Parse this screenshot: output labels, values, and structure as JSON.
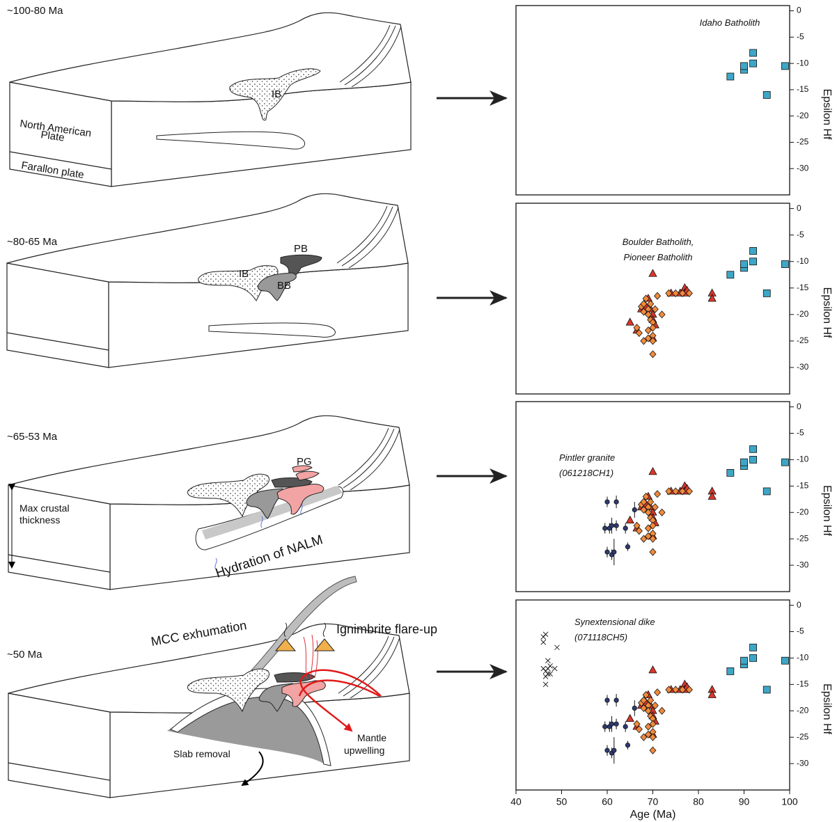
{
  "diagrams": [
    {
      "age": "~100-80 Ma",
      "labels": [
        "North American",
        "Plate",
        "Farallon plate",
        "IB"
      ]
    },
    {
      "age": "~80-65 Ma",
      "labels": [
        "PB",
        "IB",
        "BB"
      ]
    },
    {
      "age": "~65-53 Ma",
      "labels": [
        "PG",
        "Max crustal",
        "thickness",
        "Hydration of NALM"
      ]
    },
    {
      "age": "~50 Ma",
      "labels": [
        "MCC exhumation",
        "Ignimbrite flare-up",
        "Slab removal",
        "Mantle",
        "upwelling"
      ]
    }
  ],
  "chart_data": [
    {
      "type": "scatter",
      "annotation": [
        "Idaho Batholith"
      ],
      "ylabel": "Epsilon Hf",
      "xlim": [
        40,
        100
      ],
      "ylim": [
        -35,
        1
      ],
      "yticks": [
        0,
        -5,
        -10,
        -15,
        -20,
        -25,
        -30
      ],
      "series": [
        {
          "marker": "square",
          "color": "#3ea7c7",
          "x": [
            87,
            90,
            90,
            92,
            92,
            95,
            99
          ],
          "values": [
            -12.5,
            -11.2,
            -10.5,
            -8,
            -10,
            -16,
            -10.5
          ]
        }
      ]
    },
    {
      "type": "scatter",
      "annotation": [
        "Boulder Batholith,",
        "Pioneer Batholith"
      ],
      "ylabel": "Epsilon Hf",
      "xlim": [
        40,
        100
      ],
      "ylim": [
        -35,
        1
      ],
      "yticks": [
        0,
        -5,
        -10,
        -15,
        -20,
        -25,
        -30
      ],
      "series": [
        {
          "marker": "square",
          "color": "#3ea7c7",
          "x": [
            87,
            90,
            90,
            92,
            92,
            95,
            99
          ],
          "values": [
            -12.5,
            -11.2,
            -10.5,
            -8,
            -10,
            -16,
            -10.5
          ]
        },
        {
          "marker": "triangle",
          "color": "#d8372b",
          "x": [
            65,
            66.5,
            67.5,
            68.5,
            69,
            69.5,
            70,
            70,
            70,
            70,
            70.5,
            74,
            76,
            77,
            77,
            77.5,
            83,
            83
          ],
          "values": [
            -21.5,
            -23,
            -19,
            -18.5,
            -17,
            -19,
            -12.3,
            -20,
            -21,
            -24.5,
            -22,
            -16,
            -16,
            -15,
            -16,
            -15.5,
            -16,
            -17
          ]
        },
        {
          "marker": "diamond",
          "color": "#f08a3c",
          "x": [
            66.5,
            67,
            67.5,
            68,
            68,
            68.5,
            69,
            69,
            69,
            69.5,
            69.5,
            70,
            70,
            70,
            70,
            70,
            70.5,
            71,
            72,
            73.5,
            75,
            76.5,
            78,
            68,
            69
          ],
          "values": [
            -22.5,
            -23.5,
            -18.5,
            -18,
            -25,
            -17,
            -19,
            -20,
            -23,
            -18,
            -21,
            -21.5,
            -22.5,
            -24,
            -25,
            -27.5,
            -19,
            -16.5,
            -20,
            -16,
            -16,
            -16,
            -16,
            -19.5,
            -24.5
          ]
        }
      ]
    },
    {
      "type": "scatter",
      "annotation": [
        "Pintler granite",
        "(061218CH1)"
      ],
      "ylabel": "Epsilon Hf",
      "xlim": [
        40,
        100
      ],
      "ylim": [
        -35,
        1
      ],
      "yticks": [
        0,
        -5,
        -10,
        -15,
        -20,
        -25,
        -30
      ],
      "series": [
        {
          "marker": "square",
          "color": "#3ea7c7",
          "x": [
            87,
            90,
            90,
            92,
            92,
            95,
            99
          ],
          "values": [
            -12.5,
            -11.2,
            -10.5,
            -8,
            -10,
            -16,
            -10.5
          ]
        },
        {
          "marker": "triangle",
          "color": "#d8372b",
          "x": [
            65,
            66.5,
            67.5,
            68.5,
            69,
            69.5,
            70,
            70,
            70,
            70,
            70.5,
            74,
            76,
            77,
            77,
            77.5,
            83,
            83
          ],
          "values": [
            -21.5,
            -23,
            -19,
            -18.5,
            -17,
            -19,
            -12.3,
            -20,
            -21,
            -24.5,
            -22,
            -16,
            -16,
            -15,
            -16,
            -15.5,
            -16,
            -17
          ]
        },
        {
          "marker": "diamond",
          "color": "#f08a3c",
          "x": [
            66.5,
            67,
            67.5,
            68,
            68,
            68.5,
            69,
            69,
            69,
            69.5,
            69.5,
            70,
            70,
            70,
            70,
            70,
            70.5,
            71,
            72,
            73.5,
            75,
            76.5,
            78,
            68,
            69
          ],
          "values": [
            -22.5,
            -23.5,
            -18.5,
            -18,
            -25,
            -17,
            -19,
            -20,
            -23,
            -18,
            -21,
            -21.5,
            -22.5,
            -24,
            -25,
            -27.5,
            -19,
            -16.5,
            -20,
            -16,
            -16,
            -16,
            -16,
            -19.5,
            -24.5
          ]
        },
        {
          "marker": "circle",
          "color": "#2e3b6f",
          "x": [
            60,
            62,
            59.5,
            60.5,
            61,
            62,
            60,
            61,
            61.5,
            64,
            64.5,
            66
          ],
          "values": [
            -18,
            -18,
            -23,
            -23,
            -22.5,
            -22.5,
            -27.5,
            -28,
            -27.5,
            -23,
            -26.5,
            -19.5
          ],
          "errors": [
            1,
            1.2,
            1,
            1,
            1.5,
            1,
            1,
            1,
            2.5,
            1,
            0.8,
            1.5
          ]
        }
      ]
    },
    {
      "type": "scatter",
      "annotation": [
        "Synextensional dike",
        "(071118CH5)"
      ],
      "ylabel": "Epsilon Hf",
      "xlabel": "Age (Ma)",
      "xlim": [
        40,
        100
      ],
      "ylim": [
        -35,
        1
      ],
      "yticks": [
        0,
        -5,
        -10,
        -15,
        -20,
        -25,
        -30
      ],
      "xticks": [
        40,
        50,
        60,
        70,
        80,
        90,
        100
      ],
      "series": [
        {
          "marker": "square",
          "color": "#3ea7c7",
          "x": [
            87,
            90,
            90,
            92,
            92,
            95,
            99
          ],
          "values": [
            -12.5,
            -11.2,
            -10.5,
            -8,
            -10,
            -16,
            -10.5
          ]
        },
        {
          "marker": "triangle",
          "color": "#d8372b",
          "x": [
            65,
            66.5,
            67.5,
            68.5,
            69,
            69.5,
            70,
            70,
            70,
            70,
            70.5,
            74,
            76,
            77,
            77,
            77.5,
            83,
            83
          ],
          "values": [
            -21.5,
            -23,
            -19,
            -18.5,
            -17,
            -19,
            -12.3,
            -20,
            -21,
            -24.5,
            -22,
            -16,
            -16,
            -15,
            -16,
            -15.5,
            -16,
            -17
          ]
        },
        {
          "marker": "diamond",
          "color": "#f08a3c",
          "x": [
            66.5,
            67,
            67.5,
            68,
            68,
            68.5,
            69,
            69,
            69,
            69.5,
            69.5,
            70,
            70,
            70,
            70,
            70,
            70.5,
            71,
            72,
            73.5,
            75,
            76.5,
            78,
            68,
            69
          ],
          "values": [
            -22.5,
            -23.5,
            -18.5,
            -18,
            -25,
            -17,
            -19,
            -20,
            -23,
            -18,
            -21,
            -21.5,
            -22.5,
            -24,
            -25,
            -27.5,
            -19,
            -16.5,
            -20,
            -16,
            -16,
            -16,
            -16,
            -19.5,
            -24.5
          ]
        },
        {
          "marker": "circle",
          "color": "#2e3b6f",
          "x": [
            60,
            62,
            59.5,
            60.5,
            61,
            62,
            60,
            61,
            61.5,
            64,
            64.5,
            66
          ],
          "values": [
            -18,
            -18,
            -23,
            -23,
            -22.5,
            -22.5,
            -27.5,
            -28,
            -27.5,
            -23,
            -26.5,
            -19.5
          ],
          "errors": [
            1,
            1.2,
            1,
            1,
            1.5,
            1,
            1,
            1,
            2.5,
            1,
            0.8,
            1.5
          ]
        },
        {
          "marker": "x",
          "color": "#000000",
          "x": [
            46,
            46.5,
            46,
            47,
            46,
            46.5,
            47,
            47.5,
            48.5,
            47,
            46.5,
            47.5,
            46.5,
            49
          ],
          "values": [
            -6,
            -5.5,
            -7,
            -10.5,
            -12,
            -12.5,
            -12,
            -11.5,
            -12,
            -13,
            -13.5,
            -13,
            -15,
            -8
          ]
        }
      ]
    }
  ]
}
